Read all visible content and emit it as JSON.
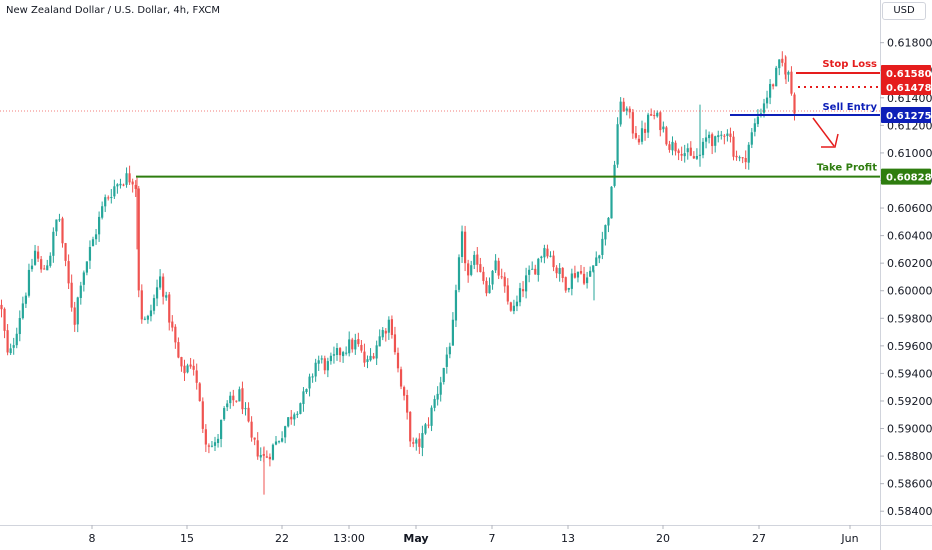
{
  "chart_data": {
    "type": "candlestick",
    "title": "New Zealand Dollar / U.S. Dollar, 4h, FXCM",
    "currency": "USD",
    "ylim": [
      0.583,
      0.6195
    ],
    "yticks": [
      "0.61800",
      "0.61600",
      "0.61400",
      "0.61200",
      "0.61000",
      "0.60800",
      "0.60600",
      "0.60400",
      "0.60200",
      "0.60000",
      "0.59800",
      "0.59600",
      "0.59400",
      "0.59200",
      "0.59000",
      "0.58800",
      "0.58600",
      "0.58400"
    ],
    "xticks": [
      {
        "label": "8",
        "bold": false
      },
      {
        "label": "15",
        "bold": false
      },
      {
        "label": "22",
        "bold": false
      },
      {
        "label": "13:00",
        "bold": false
      },
      {
        "label": "May",
        "bold": true
      },
      {
        "label": "7",
        "bold": false
      },
      {
        "label": "13",
        "bold": false
      },
      {
        "label": "20",
        "bold": false
      },
      {
        "label": "27",
        "bold": false
      },
      {
        "label": "Jun",
        "bold": false
      }
    ],
    "levels": {
      "stop_loss": {
        "label": "Stop Loss",
        "value": 0.6158,
        "tag": "0.61580",
        "color": "#e51d1d"
      },
      "last_price": {
        "value": 0.61478,
        "tag": "0.61478",
        "color": "#e51d1d"
      },
      "sell_entry": {
        "label": "Sell Entry",
        "value": 0.61275,
        "tag": "0.61275",
        "color": "#0d1fb8"
      },
      "take_profit": {
        "label": "Take Profit",
        "value": 0.60828,
        "tag": "0.60828",
        "color": "#2e7d0f"
      }
    },
    "colors": {
      "up": "#26a69a",
      "down": "#ef5350"
    },
    "anchors": [
      [
        0,
        0.599
      ],
      [
        8,
        0.5948
      ],
      [
        20,
        0.5985
      ],
      [
        28,
        0.6008
      ],
      [
        35,
        0.603
      ],
      [
        41,
        0.6012
      ],
      [
        49,
        0.6025
      ],
      [
        58,
        0.6058
      ],
      [
        65,
        0.6017
      ],
      [
        74,
        0.5978
      ],
      [
        80,
        0.6008
      ],
      [
        92,
        0.6035
      ],
      [
        104,
        0.6065
      ],
      [
        113,
        0.6075
      ],
      [
        124,
        0.6082
      ],
      [
        135,
        0.6082
      ],
      [
        139,
        0.5985
      ],
      [
        146,
        0.5975
      ],
      [
        160,
        0.601
      ],
      [
        172,
        0.597
      ],
      [
        181,
        0.594
      ],
      [
        192,
        0.595
      ],
      [
        204,
        0.5895
      ],
      [
        214,
        0.5885
      ],
      [
        225,
        0.5915
      ],
      [
        240,
        0.5925
      ],
      [
        251,
        0.589
      ],
      [
        264,
        0.5878
      ],
      [
        276,
        0.589
      ],
      [
        292,
        0.5912
      ],
      [
        306,
        0.5925
      ],
      [
        316,
        0.595
      ],
      [
        328,
        0.5945
      ],
      [
        342,
        0.5958
      ],
      [
        356,
        0.5962
      ],
      [
        366,
        0.5945
      ],
      [
        378,
        0.5965
      ],
      [
        390,
        0.598
      ],
      [
        399,
        0.5935
      ],
      [
        405,
        0.5915
      ],
      [
        412,
        0.5885
      ],
      [
        420,
        0.589
      ],
      [
        430,
        0.591
      ],
      [
        442,
        0.594
      ],
      [
        453,
        0.5975
      ],
      [
        461,
        0.604
      ],
      [
        468,
        0.6008
      ],
      [
        476,
        0.6025
      ],
      [
        486,
        0.6003
      ],
      [
        496,
        0.6018
      ],
      [
        507,
        0.5992
      ],
      [
        514,
        0.5985
      ],
      [
        524,
        0.6006
      ],
      [
        533,
        0.6015
      ],
      [
        545,
        0.6034
      ],
      [
        556,
        0.6015
      ],
      [
        566,
        0.6005
      ],
      [
        576,
        0.6015
      ],
      [
        588,
        0.6008
      ],
      [
        596,
        0.6025
      ],
      [
        606,
        0.6048
      ],
      [
        612,
        0.6075
      ],
      [
        618,
        0.613
      ],
      [
        624,
        0.6135
      ],
      [
        632,
        0.6118
      ],
      [
        640,
        0.611
      ],
      [
        650,
        0.6128
      ],
      [
        660,
        0.6122
      ],
      [
        670,
        0.6105
      ],
      [
        680,
        0.6105
      ],
      [
        690,
        0.6095
      ],
      [
        700,
        0.6098
      ],
      [
        708,
        0.6115
      ],
      [
        716,
        0.6105
      ],
      [
        726,
        0.612
      ],
      [
        734,
        0.61
      ],
      [
        742,
        0.6092
      ],
      [
        750,
        0.611
      ],
      [
        758,
        0.6128
      ],
      [
        765,
        0.614
      ],
      [
        772,
        0.615
      ],
      [
        780,
        0.6165
      ],
      [
        787,
        0.616
      ],
      [
        793,
        0.6135
      ],
      [
        797,
        0.6128
      ]
    ]
  }
}
